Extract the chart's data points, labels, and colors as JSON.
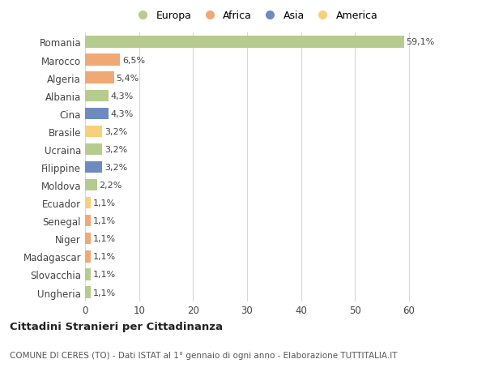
{
  "countries": [
    "Romania",
    "Marocco",
    "Algeria",
    "Albania",
    "Cina",
    "Brasile",
    "Ucraina",
    "Filippine",
    "Moldova",
    "Ecuador",
    "Senegal",
    "Niger",
    "Madagascar",
    "Slovacchia",
    "Ungheria"
  ],
  "values": [
    59.1,
    6.5,
    5.4,
    4.3,
    4.3,
    3.2,
    3.2,
    3.2,
    2.2,
    1.1,
    1.1,
    1.1,
    1.1,
    1.1,
    1.1
  ],
  "labels": [
    "59,1%",
    "6,5%",
    "5,4%",
    "4,3%",
    "4,3%",
    "3,2%",
    "3,2%",
    "3,2%",
    "2,2%",
    "1,1%",
    "1,1%",
    "1,1%",
    "1,1%",
    "1,1%",
    "1,1%"
  ],
  "continents": [
    "Europa",
    "Africa",
    "Africa",
    "Europa",
    "Asia",
    "America",
    "Europa",
    "Asia",
    "Europa",
    "America",
    "Africa",
    "Africa",
    "Africa",
    "Europa",
    "Europa"
  ],
  "colors": {
    "Europa": "#b5cc8e",
    "Africa": "#f0a875",
    "Asia": "#6d8bbf",
    "America": "#f7d07a"
  },
  "legend_order": [
    "Europa",
    "Africa",
    "Asia",
    "America"
  ],
  "xlim": [
    0,
    63
  ],
  "xticks": [
    0,
    10,
    20,
    30,
    40,
    50,
    60
  ],
  "title": "Cittadini Stranieri per Cittadinanza",
  "subtitle": "COMUNE DI CERES (TO) - Dati ISTAT al 1° gennaio di ogni anno - Elaborazione TUTTITALIA.IT",
  "bg_color": "#ffffff",
  "grid_color": "#d8d8d8",
  "bar_height": 0.65,
  "label_fontsize": 8,
  "tick_fontsize": 8.5
}
